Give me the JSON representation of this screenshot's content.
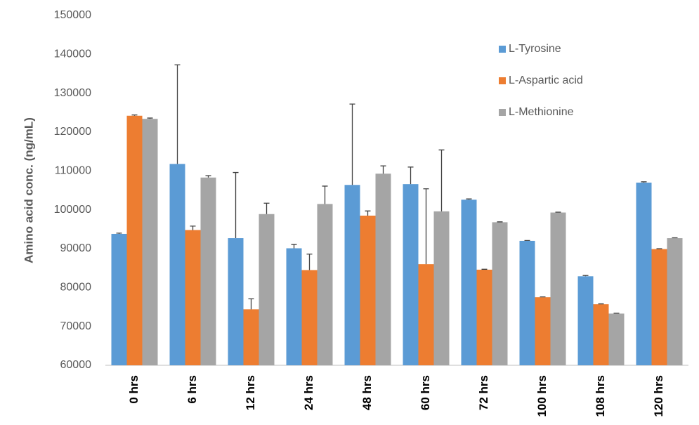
{
  "chart_data": {
    "type": "bar",
    "y_label": "Amino acid conc. (ng/mL)",
    "categories": [
      "0 hrs",
      "6 hrs",
      "12 hrs",
      "24 hrs",
      "48 hrs",
      "60 hrs",
      "72 hrs",
      "100 hrs",
      "108 hrs",
      "120 hrs"
    ],
    "series": [
      {
        "name": "L-Tyrosine",
        "color": "#5b9bd5",
        "values": [
          93800,
          111800,
          92700,
          90100,
          106400,
          106600,
          102600,
          92000,
          82900,
          107000
        ],
        "errors": [
          200,
          25500,
          16900,
          1000,
          20800,
          4400,
          200,
          100,
          200,
          200
        ]
      },
      {
        "name": "L-Aspartic acid",
        "color": "#ed7d31",
        "values": [
          124200,
          94800,
          74400,
          84500,
          98500,
          86000,
          84600,
          77500,
          75700,
          89900
        ],
        "errors": [
          200,
          1000,
          2700,
          4100,
          1200,
          19400,
          100,
          100,
          100,
          100
        ]
      },
      {
        "name": "L-Methionine",
        "color": "#a5a5a5",
        "values": [
          123400,
          108300,
          98900,
          101500,
          109300,
          99600,
          96800,
          99300,
          73300,
          92700
        ],
        "errors": [
          200,
          500,
          2800,
          4600,
          2000,
          15800,
          100,
          100,
          100,
          100
        ]
      }
    ],
    "ylim": [
      60000,
      150000
    ],
    "yticks": [
      60000,
      70000,
      80000,
      90000,
      100000,
      110000,
      120000,
      130000,
      140000,
      150000
    ],
    "grid": false,
    "legend": "top-right"
  }
}
